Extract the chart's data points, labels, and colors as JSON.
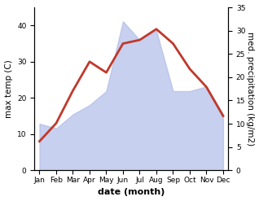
{
  "months": [
    "Jan",
    "Feb",
    "Mar",
    "Apr",
    "May",
    "Jun",
    "Jul",
    "Aug",
    "Sep",
    "Oct",
    "Nov",
    "Dec"
  ],
  "temp": [
    8,
    13,
    22,
    30,
    27,
    35,
    36,
    39,
    35,
    28,
    23,
    15
  ],
  "precip": [
    10,
    9,
    12,
    14,
    17,
    32,
    28,
    30,
    17,
    17,
    18,
    12
  ],
  "temp_color": "#c0392b",
  "precip_color": "#b0bce8",
  "precip_alpha": 0.7,
  "temp_lw": 2.0,
  "ylim_left": [
    0,
    45
  ],
  "ylim_right": [
    0,
    35
  ],
  "ylabel_left": "max temp (C)",
  "ylabel_right": "med. precipitation (kg/m2)",
  "xlabel": "date (month)",
  "xlabel_fontsize": 8,
  "xlabel_fontweight": "bold",
  "ylabel_fontsize": 7.5,
  "tick_fontsize": 6.5,
  "yticks_left": [
    0,
    10,
    20,
    30,
    40
  ],
  "yticks_right": [
    0,
    5,
    10,
    15,
    20,
    25,
    30,
    35
  ],
  "bg_color": "#ffffff"
}
